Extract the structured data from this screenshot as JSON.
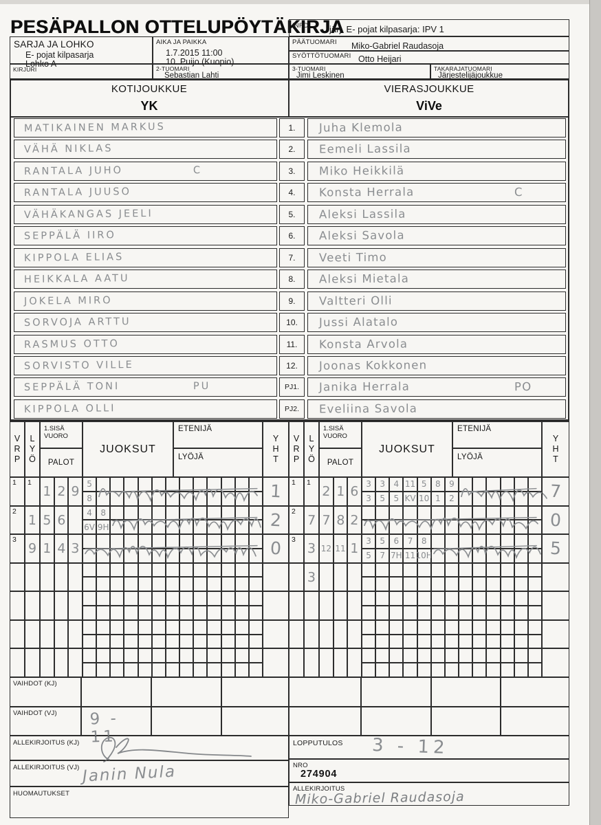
{
  "colors": {
    "paper": "#f7f6f3",
    "ink": "#1e1e1e",
    "pencil": "#8a8d90",
    "line": "#2b2b2b",
    "scan_edge": "#c9c7c3"
  },
  "title": "PESÄPALLON OTTELUPÖYTÄKIRJA",
  "info": {
    "label": "INFO",
    "value": "järj. E- pojat kilpasarja: IPV 1"
  },
  "match": {
    "sarja_label": "SARJA JA LOHKO",
    "sarja_line1": "E- pojat kilpasarja",
    "sarja_line2": "Lohko A",
    "aika_label": "AIKA JA PAIKKA",
    "aika_line1": "1.7.2015 11:00",
    "aika_line2": "10. Puijo (Kuopio)",
    "paatuomari_label": "PÄÄTUOMARI",
    "paatuomari_value": "Miko-Gabriel Raudasoja",
    "syottotuomari_label": "SYÖTTÖTUOMARI",
    "syottotuomari_value": "Otto Heijari",
    "kirjuri_label": "KIRJURI",
    "kirjuri_value": "",
    "tuomari2_label": "2-TUOMARI",
    "tuomari2_value": "Sebastian Lahti",
    "tuomari3_label": "3-TUOMARI",
    "tuomari3_value": "Jimi Leskinen",
    "takaraja_label": "TAKARAJATUOMARI",
    "takaraja_value": "Järjestelijäjoukkue"
  },
  "teams": {
    "home_label": "KOTIJOUKKUE",
    "home_name": "YK",
    "away_label": "VIERASJOUKKUE",
    "away_name": "ViVe"
  },
  "roster": [
    {
      "num": "1.",
      "home": "MATIKAINEN MARKUS",
      "home_mark": "",
      "away": "Juha Klemola",
      "away_mark": ""
    },
    {
      "num": "2.",
      "home": "VÄHÄ NIKLAS",
      "home_mark": "",
      "away": "Eemeli Lassila",
      "away_mark": ""
    },
    {
      "num": "3.",
      "home": "RANTALA JUHO",
      "home_mark": "C",
      "away": "Miko Heikkilä",
      "away_mark": ""
    },
    {
      "num": "4.",
      "home": "RANTALA JUUSO",
      "home_mark": "",
      "away": "Konsta Herrala",
      "away_mark": "C"
    },
    {
      "num": "5.",
      "home": "VÄHÄKANGAS JEELI",
      "home_mark": "",
      "away": "Aleksi Lassila",
      "away_mark": ""
    },
    {
      "num": "6.",
      "home": "SEPPÄLÄ IIRO",
      "home_mark": "",
      "away": "Aleksi Savola",
      "away_mark": ""
    },
    {
      "num": "7.",
      "home": "KIPPOLA ELIAS",
      "home_mark": "",
      "away": "Veeti Timo",
      "away_mark": ""
    },
    {
      "num": "8.",
      "home": "HEIKKALA AATU",
      "home_mark": "",
      "away": "Aleksi Mietala",
      "away_mark": ""
    },
    {
      "num": "9.",
      "home": "JOKELA MIRO",
      "home_mark": "",
      "away": "Valtteri Olli",
      "away_mark": ""
    },
    {
      "num": "10.",
      "home": "SORVOJA ARTTU",
      "home_mark": "",
      "away": "Jussi Alatalo",
      "away_mark": ""
    },
    {
      "num": "11.",
      "home": "RASMUS OTTO",
      "home_mark": "",
      "away": "Konsta Arvola",
      "away_mark": ""
    },
    {
      "num": "12.",
      "home": "SORVISTO VILLE",
      "home_mark": "",
      "away": "Joonas Kokkonen",
      "away_mark": ""
    },
    {
      "num": "PJ1.",
      "home": "SEPPÄLÄ TONI",
      "home_mark": "PU",
      "away": "Janika Herrala",
      "away_mark": "PO"
    },
    {
      "num": "PJ2.",
      "home": "KIPPOLA OLLI",
      "home_mark": "",
      "away": "Eveliina Savola",
      "away_mark": ""
    }
  ],
  "grid": {
    "labels": {
      "vrp": "V\nR\nP",
      "lyo": "L\nY\nÖ",
      "sisa": "1.SISÄ\nVUORO",
      "palot": "PALOT",
      "juoksut": "JUOKSUT",
      "etenija": "ETENIJÄ",
      "lyoja": "LYÖJÄ",
      "yht": "Y\nH\nT"
    },
    "home": {
      "rows": [
        {
          "num": "1",
          "lyo_printed": "1",
          "lyo": "",
          "palot": [
            "1",
            "2",
            "9"
          ],
          "top": [
            "5"
          ],
          "bottom": [
            "8"
          ],
          "scribble_from": 1,
          "yht": "1"
        },
        {
          "num": "2",
          "lyo_printed": "",
          "lyo": "1",
          "palot": [
            "5",
            "6",
            ""
          ],
          "top": [
            "4",
            "8"
          ],
          "bottom": [
            "6V",
            "9H"
          ],
          "scribble_from": 2,
          "yht": "2"
        },
        {
          "num": "3",
          "lyo_printed": "",
          "lyo": "9",
          "palot": [
            "1",
            "4",
            "3"
          ],
          "top": [],
          "bottom": [],
          "scribble_from": 0,
          "yht": "0"
        },
        {
          "num": "",
          "lyo_printed": "",
          "lyo": "",
          "palot": [
            "",
            "",
            ""
          ],
          "top": [],
          "bottom": [],
          "scribble_from": null,
          "yht": ""
        },
        {
          "num": "",
          "lyo_printed": "",
          "lyo": "",
          "palot": [
            "",
            "",
            ""
          ],
          "top": [],
          "bottom": [],
          "scribble_from": null,
          "yht": ""
        },
        {
          "num": "",
          "lyo_printed": "",
          "lyo": "",
          "palot": [
            "",
            "",
            ""
          ],
          "top": [],
          "bottom": [],
          "scribble_from": null,
          "yht": ""
        },
        {
          "num": "",
          "lyo_printed": "",
          "lyo": "",
          "palot": [
            "",
            "",
            ""
          ],
          "top": [],
          "bottom": [],
          "scribble_from": null,
          "yht": ""
        }
      ]
    },
    "away": {
      "rows": [
        {
          "num": "1",
          "lyo_printed": "1",
          "lyo": "",
          "palot": [
            "2",
            "1",
            "6"
          ],
          "top": [
            "3",
            "3",
            "4",
            "11",
            "5",
            "8",
            "9"
          ],
          "bottom": [
            "3",
            "5",
            "5",
            "KV",
            "10",
            "1",
            "2"
          ],
          "scribble_from": 7,
          "yht": "7"
        },
        {
          "num": "2",
          "lyo_printed": "",
          "lyo": "7",
          "palot": [
            "7",
            "8",
            "2"
          ],
          "top": [],
          "bottom": [],
          "scribble_from": 0,
          "yht": "0"
        },
        {
          "num": "3",
          "lyo_printed": "",
          "lyo": "3",
          "palot": [
            "12",
            "11",
            "1"
          ],
          "top": [
            "3",
            "5",
            "6",
            "7",
            "8"
          ],
          "bottom": [
            "5",
            "7",
            "7H",
            "11",
            "10H"
          ],
          "scribble_from": 5,
          "yht": "5"
        },
        {
          "num": "",
          "lyo_printed": "",
          "lyo": "3",
          "palot": [
            "",
            "",
            ""
          ],
          "top": [],
          "bottom": [],
          "scribble_from": null,
          "yht": ""
        },
        {
          "num": "",
          "lyo_printed": "",
          "lyo": "",
          "palot": [
            "",
            "",
            ""
          ],
          "top": [],
          "bottom": [],
          "scribble_from": null,
          "yht": ""
        },
        {
          "num": "",
          "lyo_printed": "",
          "lyo": "",
          "palot": [
            "",
            "",
            ""
          ],
          "top": [],
          "bottom": [],
          "scribble_from": null,
          "yht": ""
        },
        {
          "num": "",
          "lyo_printed": "",
          "lyo": "",
          "palot": [
            "",
            "",
            ""
          ],
          "top": [],
          "bottom": [],
          "scribble_from": null,
          "yht": ""
        }
      ]
    }
  },
  "bottom": {
    "vaihdot_kj_label": "VAIHDOT (KJ)",
    "vaihdot_kj_value": "",
    "vaihdot_vj_label": "VAIHDOT (VJ)",
    "vaihdot_vj_value": "9 - 11",
    "allekirjoitus_kj_label": "ALLEKIRJOITUS (KJ)",
    "allekirjoitus_vj_label": "ALLEKIRJOITUS (VJ)",
    "allekirjoitus_vj_value": "Janin Nula",
    "huomautukset_label": "HUOMAUTUKSET",
    "huomautukset_value": "",
    "lopputulos_label": "LOPPUTULOS",
    "lopputulos_value": "3 - 12",
    "nro_label": "NRO",
    "nro_value": "274904",
    "allekirjoitus_label": "ALLEKIRJOITUS",
    "allekirjoitus_value": "Miko-Gabriel Raudasoja"
  }
}
